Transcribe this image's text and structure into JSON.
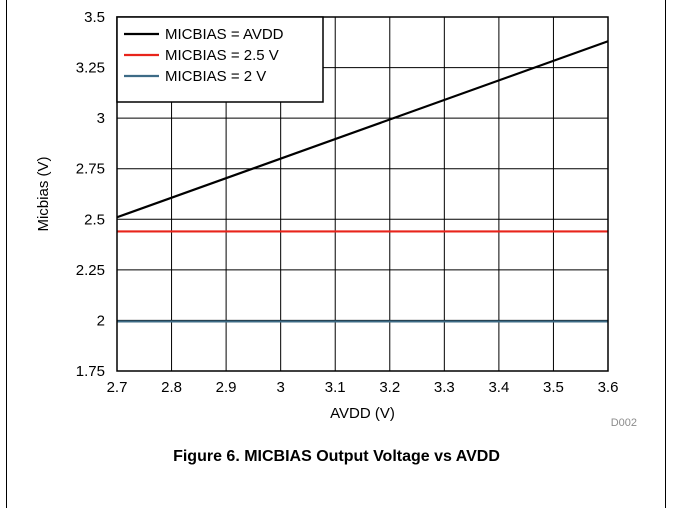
{
  "caption": "Figure 6. MICBIAS Output Voltage vs AVDD",
  "figure_id": "D002",
  "colors": {
    "avdd": "#000000",
    "v2_5": "#e8241b",
    "v2": "#3d6b86",
    "grid": "#000000"
  },
  "chart_data": {
    "type": "line",
    "title": "",
    "xlabel": "AVDD (V)",
    "ylabel": "Micbias (V)",
    "xlim": [
      2.7,
      3.6
    ],
    "ylim": [
      1.75,
      3.5
    ],
    "xticks": [
      "2.7",
      "2.8",
      "2.9",
      "3",
      "3.1",
      "3.2",
      "3.3",
      "3.4",
      "3.5",
      "3.6"
    ],
    "yticks": [
      "1.75",
      "2",
      "2.25",
      "2.5",
      "2.75",
      "3",
      "3.25",
      "3.5"
    ],
    "grid": true,
    "legend_position": "top-left",
    "series": [
      {
        "name": "MICBIAS = AVDD",
        "color_key": "avdd",
        "x": [
          2.7,
          3.6
        ],
        "y": [
          2.51,
          3.38
        ]
      },
      {
        "name": "MICBIAS = 2.5 V",
        "color_key": "v2_5",
        "x": [
          2.7,
          3.6
        ],
        "y": [
          2.44,
          2.44
        ]
      },
      {
        "name": "MICBIAS = 2 V",
        "color_key": "v2",
        "x": [
          2.7,
          3.6
        ],
        "y": [
          1.995,
          1.995
        ]
      }
    ]
  }
}
